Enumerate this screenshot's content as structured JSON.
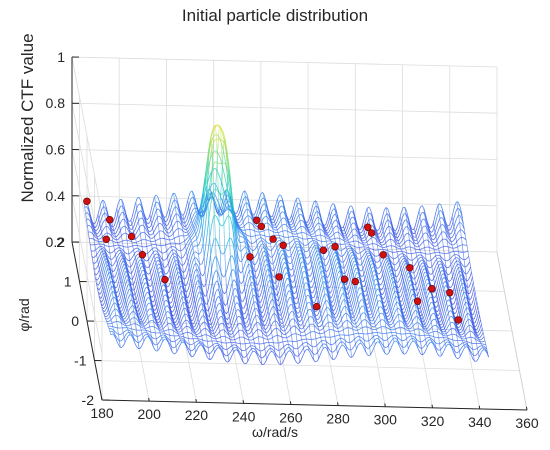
{
  "chart_data": {
    "type": "surface3d",
    "title": "Initial particle distribution",
    "xlabel": "ω/rad/s",
    "ylabel": "φ/rad",
    "zlabel": "Normalized CTF value",
    "xlim": [
      180,
      360
    ],
    "ylim": [
      -2,
      2
    ],
    "zlim": [
      0.2,
      1
    ],
    "x_ticks": [
      "180",
      "200",
      "220",
      "240",
      "260",
      "280",
      "300",
      "320",
      "340",
      "360"
    ],
    "y_ticks": [
      "-2",
      "-1",
      "0",
      "1",
      "2"
    ],
    "z_ticks": [
      "0.2",
      "0.4",
      "0.6",
      "0.8",
      "1"
    ],
    "grid": true,
    "surface_colormap": [
      "#3b3dd8",
      "#3f64ea",
      "#2f95ee",
      "#1cc3d6",
      "#4fd8a5",
      "#a8de5a",
      "#f7e13a"
    ],
    "peak": {
      "omega": 238,
      "phi": 0.8,
      "value": 0.95
    },
    "particles": [
      {
        "omega": 186,
        "phi": 1.9
      },
      {
        "omega": 192,
        "phi": 1.2
      },
      {
        "omega": 195,
        "phi": 1.7
      },
      {
        "omega": 203,
        "phi": 1.3
      },
      {
        "omega": 206,
        "phi": 0.8
      },
      {
        "omega": 213,
        "phi": 0.0
      },
      {
        "omega": 257,
        "phi": 1.6
      },
      {
        "omega": 258,
        "phi": 1.3
      },
      {
        "omega": 262,
        "phi": 1.0
      },
      {
        "omega": 265,
        "phi": 0.6
      },
      {
        "omega": 262,
        "phi": 0.2
      },
      {
        "omega": 250,
        "phi": 0.3
      },
      {
        "omega": 276,
        "phi": -0.4
      },
      {
        "omega": 283,
        "phi": 0.9
      },
      {
        "omega": 287,
        "phi": 0.6
      },
      {
        "omega": 290,
        "phi": 0.3
      },
      {
        "omega": 293,
        "phi": -0.2
      },
      {
        "omega": 304,
        "phi": 1.6
      },
      {
        "omega": 305,
        "phi": 1.4
      },
      {
        "omega": 308,
        "phi": 0.8
      },
      {
        "omega": 318,
        "phi": 0.4
      },
      {
        "omega": 320,
        "phi": 0.0
      },
      {
        "omega": 327,
        "phi": 0.3
      },
      {
        "omega": 333,
        "phi": -0.2
      },
      {
        "omega": 336,
        "phi": -0.4
      }
    ],
    "particle_color": "#d01010"
  }
}
